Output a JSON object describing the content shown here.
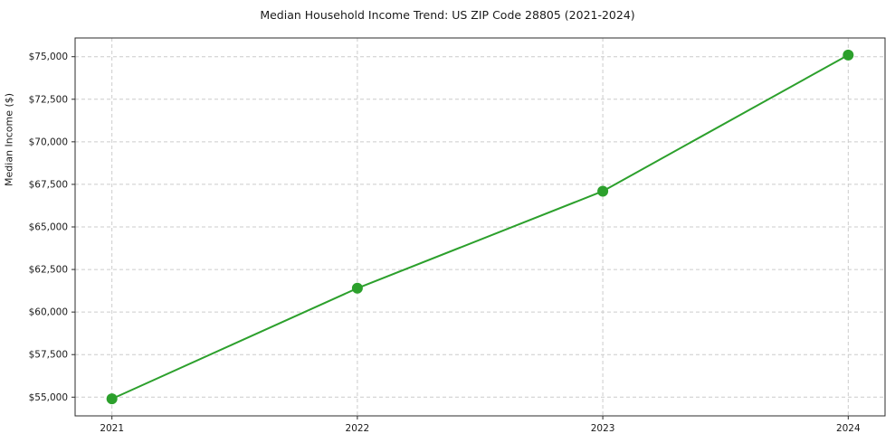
{
  "chart_data": {
    "type": "line",
    "title": "Median Household Income Trend: US ZIP Code 28805 (2021-2024)",
    "xlabel": "",
    "ylabel": "Median Income ($)",
    "x": [
      2021,
      2022,
      2023,
      2024
    ],
    "x_tick_labels": [
      "2021",
      "2022",
      "2023",
      "2024"
    ],
    "series": [
      {
        "name": "Median Household Income",
        "values": [
          54900,
          61400,
          67100,
          75100
        ]
      }
    ],
    "y_tick_values": [
      55000,
      57500,
      60000,
      62500,
      65000,
      67500,
      70000,
      72500,
      75000
    ],
    "y_tick_labels": [
      "$55,000",
      "$57,500",
      "$60,000",
      "$62,500",
      "$65,000",
      "$67,500",
      "$70,000",
      "$72,500",
      "$75,000"
    ],
    "xlim": [
      2020.85,
      2024.15
    ],
    "ylim": [
      53900,
      76100
    ],
    "line_color": "#2ca02c",
    "marker_color": "#2ca02c",
    "grid": true,
    "grid_color": "#cccccc",
    "spine_color": "#2b2b2b",
    "legend_position": "none"
  }
}
